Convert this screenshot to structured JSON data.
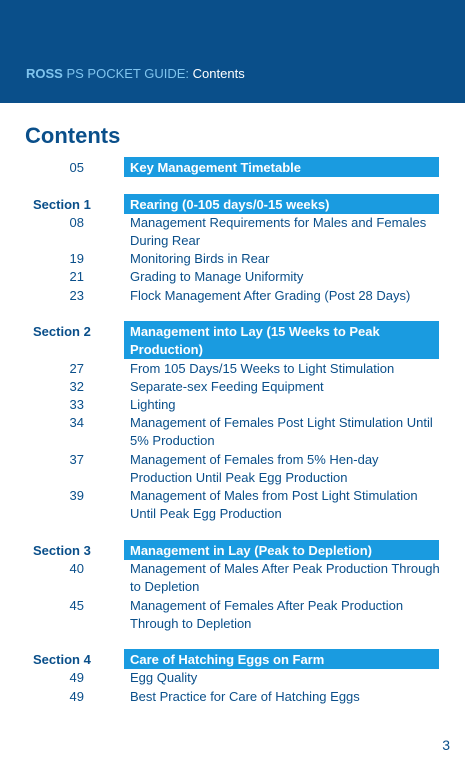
{
  "header": {
    "brand": "ROSS",
    "guide": "PS POCKET GUIDE:",
    "section": "Contents"
  },
  "page_title": "Contents",
  "intro_entry": {
    "page": "05",
    "title": "Key Management Timetable"
  },
  "sections": [
    {
      "label": "Section 1",
      "title": "Rearing (0-105 days/0-15 weeks)",
      "entries": [
        {
          "page": "08",
          "title": "Management Requirements for Males and Females During Rear"
        },
        {
          "page": "19",
          "title": "Monitoring Birds in Rear"
        },
        {
          "page": "21",
          "title": "Grading to Manage Uniformity"
        },
        {
          "page": "23",
          "title": "Flock Management After Grading (Post 28 Days)"
        }
      ]
    },
    {
      "label": "Section 2",
      "title": "Management into Lay (15 Weeks to Peak Production)",
      "entries": [
        {
          "page": "27",
          "title": "From 105 Days/15 Weeks to Light Stimulation"
        },
        {
          "page": "32",
          "title": "Separate-sex Feeding Equipment"
        },
        {
          "page": "33",
          "title": "Lighting"
        },
        {
          "page": "34",
          "title": "Management of Females Post Light Stimulation Until 5% Production"
        },
        {
          "page": "37",
          "title": "Management of Females from 5% Hen-day Production Until Peak Egg Production"
        },
        {
          "page": "39",
          "title": "Management of Males from Post Light Stimulation Until Peak Egg Production"
        }
      ]
    },
    {
      "label": "Section 3",
      "title": "Management in Lay (Peak to Depletion)",
      "entries": [
        {
          "page": "40",
          "title": "Management of Males After Peak Production Through to Depletion"
        },
        {
          "page": "45",
          "title": "Management of Females After Peak Production Through to Depletion"
        }
      ]
    },
    {
      "label": "Section 4",
      "title": "Care of Hatching Eggs on Farm",
      "entries": [
        {
          "page": "49",
          "title": "Egg Quality"
        },
        {
          "page": "49",
          "title": "Best Practice for Care of Hatching Eggs"
        }
      ]
    }
  ],
  "page_number": "3",
  "colors": {
    "header_bg": "#0a4f8a",
    "header_accent": "#7fc4ee",
    "bar_bg": "#1a9be0",
    "text": "#0a4f8a"
  }
}
